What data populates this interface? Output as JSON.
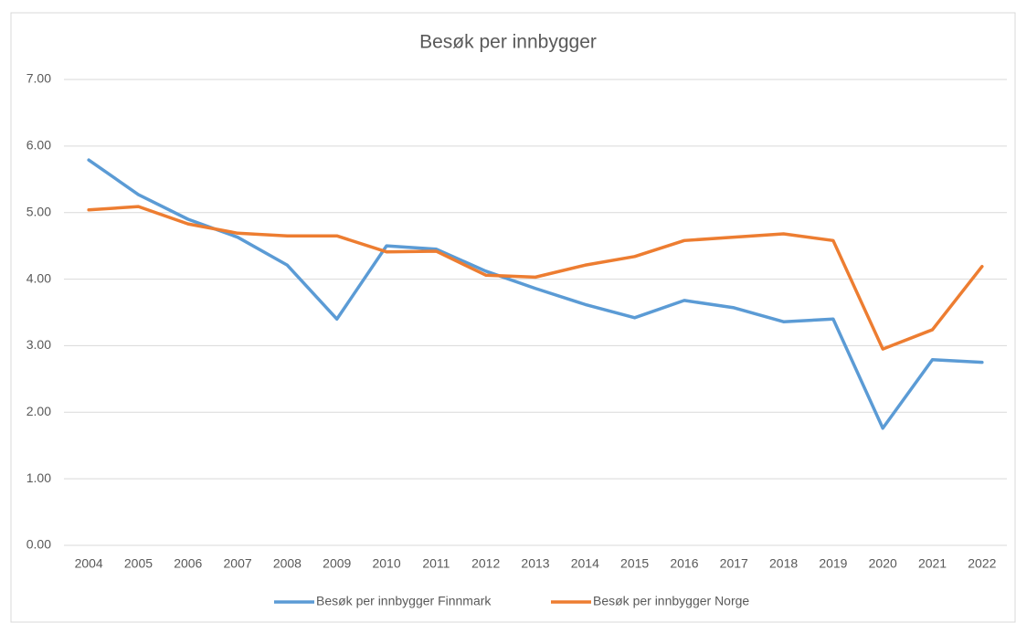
{
  "chart_data": {
    "type": "line",
    "title": "Besøk per innbygger",
    "categories": [
      "2004",
      "2005",
      "2006",
      "2007",
      "2008",
      "2009",
      "2010",
      "2011",
      "2012",
      "2013",
      "2014",
      "2015",
      "2016",
      "2017",
      "2018",
      "2019",
      "2020",
      "2021",
      "2022"
    ],
    "series": [
      {
        "name": "Besøk per innbygger Finnmark",
        "color": "#5b9bd5",
        "values": [
          5.79,
          5.27,
          4.9,
          4.63,
          4.21,
          3.4,
          4.5,
          4.45,
          4.12,
          3.86,
          3.62,
          3.42,
          3.68,
          3.57,
          3.36,
          3.4,
          1.76,
          2.79,
          2.75
        ]
      },
      {
        "name": "Besøk per innbygger Norge",
        "color": "#ed7d31",
        "values": [
          5.04,
          5.09,
          4.83,
          4.69,
          4.65,
          4.65,
          4.41,
          4.42,
          4.06,
          4.03,
          4.21,
          4.34,
          4.58,
          4.63,
          4.68,
          4.58,
          2.95,
          3.24,
          4.19
        ]
      }
    ],
    "ylim": [
      0,
      7
    ],
    "yticks": [
      {
        "value": 0,
        "label": "0.00"
      },
      {
        "value": 1,
        "label": "1.00"
      },
      {
        "value": 2,
        "label": "2.00"
      },
      {
        "value": 3,
        "label": "3.00"
      },
      {
        "value": 4,
        "label": "4.00"
      },
      {
        "value": 5,
        "label": "5.00"
      },
      {
        "value": 6,
        "label": "6.00"
      },
      {
        "value": 7,
        "label": "7.00"
      }
    ],
    "grid": true,
    "legend": "bottom"
  }
}
